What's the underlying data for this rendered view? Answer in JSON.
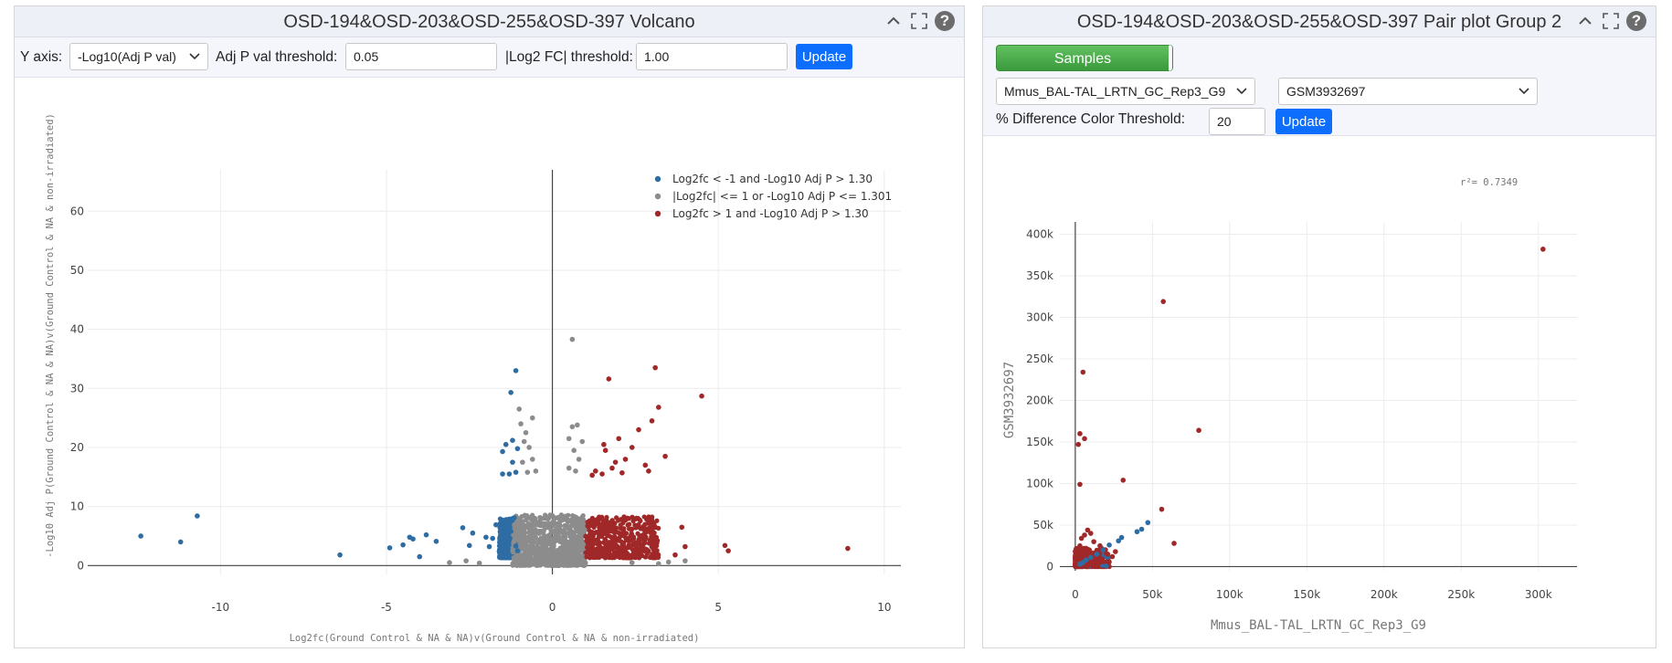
{
  "volcano": {
    "title": "OSD-194&OSD-203&OSD-255&OSD-397 Volcano",
    "controls": {
      "y_axis_label": "Y axis:",
      "y_axis_value": "-Log10(Adj P val)",
      "adj_p_label": "Adj P val threshold:",
      "adj_p_value": "0.05",
      "log2fc_label": "|Log2 FC| threshold:",
      "log2fc_value": "1.00",
      "update_label": "Update"
    }
  },
  "pair": {
    "title": "OSD-194&OSD-203&OSD-255&OSD-397 Pair plot Group 2",
    "controls": {
      "samples_label": "Samples",
      "sample_x_value": "Mmus_BAL-TAL_LRTN_GC_Rep3_G9",
      "sample_y_value": "GSM3932697",
      "threshold_label": "% Difference Color Threshold:",
      "threshold_value": "20",
      "update_label": "Update"
    }
  },
  "colors": {
    "down": "#2e6da4",
    "ns": "#8c8c8c",
    "up": "#a02828",
    "update_button": "#0d6efd",
    "samples_button": "#4caf50"
  },
  "chart_data": [
    {
      "type": "scatter",
      "name": "volcano",
      "xlabel": "Log2fc(Ground Control & NA & NA)v(Ground Control & NA & non-irradiated)",
      "ylabel": "-Log10 Adj P(Ground Control & NA & NA)v(Ground Control & NA & non-irradiated)",
      "xlim": [
        -14,
        10.5
      ],
      "ylim": [
        -1.5,
        67
      ],
      "xticks": [
        -10,
        -5,
        0,
        5,
        10
      ],
      "yticks": [
        0,
        10,
        20,
        30,
        40,
        50,
        60
      ],
      "grid": true,
      "legend_position": "top-right",
      "series": [
        {
          "name": "Log2fc < -1 and -Log10 Adj P > 1.30",
          "color": "#2e6da4",
          "points": [
            [
              -12.4,
              5
            ],
            [
              -11.2,
              4
            ],
            [
              -10.7,
              8.4
            ],
            [
              -6.4,
              1.8
            ],
            [
              -4.9,
              3
            ],
            [
              -4.5,
              3.5
            ],
            [
              -4.3,
              4.8
            ],
            [
              -4.2,
              4.5
            ],
            [
              -4.0,
              1.5
            ],
            [
              -3.8,
              5.2
            ],
            [
              -3.5,
              4.1
            ],
            [
              -2.7,
              6.4
            ],
            [
              -2.5,
              3.4
            ],
            [
              -2.4,
              5.5
            ],
            [
              -2.0,
              4.8
            ],
            [
              -1.9,
              3.2
            ],
            [
              -1.8,
              4.6
            ],
            [
              -1.7,
              6.9
            ],
            [
              -1.5,
              3.9
            ],
            [
              -1.4,
              5.4
            ],
            [
              -1.3,
              4.3
            ],
            [
              -1.2,
              7.7
            ],
            [
              -1.1,
              3.3
            ],
            [
              -1.05,
              2.5
            ],
            [
              -1.35,
              6.4
            ],
            [
              -1.6,
              2.4
            ],
            [
              -1.25,
              5.8
            ],
            [
              -1.15,
              8.1
            ],
            [
              -1.5,
              15.5
            ],
            [
              -1.5,
              19.3
            ],
            [
              -1.4,
              20.5
            ],
            [
              -1.3,
              15.5
            ],
            [
              -1.2,
              17.5
            ],
            [
              -1.1,
              15.8
            ],
            [
              -1.2,
              21.2
            ],
            [
              -1.25,
              29.3
            ],
            [
              -1.1,
              33
            ],
            [
              -1.05,
              19.8
            ]
          ]
        },
        {
          "name": "|Log2fc| <= 1 or -Log10 Adj P <= 1.301",
          "color": "#8c8c8c",
          "points": [
            [
              0.6,
              38.3
            ],
            [
              -0.95,
              24
            ],
            [
              -0.8,
              22.5
            ],
            [
              -0.7,
              20
            ],
            [
              -0.6,
              18
            ],
            [
              -0.5,
              16
            ],
            [
              -0.9,
              17.5
            ],
            [
              -0.6,
              25
            ],
            [
              -0.75,
              15.8
            ],
            [
              -0.85,
              21
            ],
            [
              -1.0,
              26.5
            ],
            [
              0.5,
              21.5
            ],
            [
              0.6,
              23.5
            ],
            [
              0.75,
              23.8
            ],
            [
              0.65,
              19.5
            ],
            [
              0.8,
              18
            ],
            [
              0.7,
              16
            ],
            [
              0.9,
              21
            ],
            [
              0.5,
              16.5
            ],
            [
              -3.1,
              0.5
            ],
            [
              -2.6,
              0.8
            ],
            [
              -2.2,
              0.4
            ],
            [
              3.2,
              0.3
            ],
            [
              4.0,
              0.8
            ],
            [
              3.5,
              0.6
            ],
            [
              2.4,
              0.5
            ]
          ]
        },
        {
          "name": "Log2fc > 1 and -Log10 Adj P > 1.30",
          "color": "#a02828",
          "points": [
            [
              3.1,
              33.5
            ],
            [
              1.7,
              31.6
            ],
            [
              4.5,
              28.7
            ],
            [
              3.2,
              26.8
            ],
            [
              3.0,
              24.5
            ],
            [
              2.6,
              23
            ],
            [
              2.0,
              21.5
            ],
            [
              1.6,
              19.5
            ],
            [
              2.4,
              20
            ],
            [
              2.8,
              17
            ],
            [
              1.3,
              16
            ],
            [
              1.5,
              15.5
            ],
            [
              2.2,
              18
            ],
            [
              1.8,
              16.5
            ],
            [
              3.4,
              18.5
            ],
            [
              2.9,
              16
            ],
            [
              2.1,
              15.7
            ],
            [
              1.2,
              15.3
            ],
            [
              1.9,
              17.5
            ],
            [
              1.55,
              20.5
            ],
            [
              5.2,
              3.4
            ],
            [
              5.3,
              2.5
            ],
            [
              8.9,
              2.9
            ],
            [
              3.9,
              6.5
            ],
            [
              4.0,
              3.2
            ],
            [
              3.7,
              1.8
            ]
          ]
        }
      ],
      "dense_bands": [
        {
          "series": 0,
          "x": [
            -1.6,
            -1.0
          ],
          "y": [
            1.3,
            8
          ]
        },
        {
          "series": 1,
          "x": [
            -1.2,
            1.0
          ],
          "y": [
            0,
            8.6
          ]
        },
        {
          "series": 2,
          "x": [
            1.0,
            3.2
          ],
          "y": [
            1.3,
            8.3
          ]
        }
      ]
    },
    {
      "type": "scatter",
      "name": "pair plot",
      "xlabel": "Mmus_BAL-TAL_LRTN_GC_Rep3_G9",
      "ylabel": "GSM3932697",
      "annotation": "r²= 0.7349",
      "xlim": [
        -10000,
        325000
      ],
      "ylim": [
        -5000,
        406000
      ],
      "xticks": [
        0,
        50000,
        100000,
        150000,
        200000,
        250000,
        300000
      ],
      "xticklabels": [
        "0",
        "50k",
        "100k",
        "150k",
        "200k",
        "250k",
        "300k"
      ],
      "yticks": [
        0,
        50000,
        100000,
        150000,
        200000,
        250000,
        300000,
        350000,
        400000
      ],
      "yticklabels": [
        "0",
        "50k",
        "100k",
        "150k",
        "200k",
        "250k",
        "300k",
        "350k",
        "400k"
      ],
      "grid": true,
      "series": [
        {
          "color": "#a02828",
          "points": [
            [
              303000,
              382000
            ],
            [
              57000,
              319000
            ],
            [
              5000,
              234000
            ],
            [
              3000,
              160000
            ],
            [
              2000,
              147000
            ],
            [
              6000,
              154000
            ],
            [
              80000,
              164000
            ],
            [
              3000,
              99000
            ],
            [
              31000,
              104000
            ],
            [
              56000,
              69000
            ],
            [
              64000,
              28000
            ],
            [
              26000,
              18000
            ],
            [
              21000,
              15000
            ],
            [
              15000,
              19000
            ],
            [
              12000,
              30000
            ],
            [
              10000,
              40000
            ],
            [
              8000,
              44000
            ],
            [
              6000,
              38000
            ],
            [
              4000,
              34000
            ],
            [
              3000,
              25000
            ],
            [
              2000,
              16000
            ],
            [
              1500,
              10000
            ],
            [
              1000,
              5000
            ],
            [
              9000,
              8000
            ],
            [
              13000,
              10000
            ],
            [
              18000,
              6000
            ],
            [
              24000,
              12000
            ],
            [
              16000,
              25000
            ],
            [
              7000,
              22000
            ],
            [
              11000,
              14000
            ],
            [
              5000,
              12000
            ],
            [
              3000,
              6000
            ],
            [
              8000,
              2000
            ]
          ]
        },
        {
          "color": "#2e6da4",
          "points": [
            [
              47000,
              53000
            ],
            [
              43000,
              45000
            ],
            [
              40000,
              42000
            ],
            [
              30000,
              35000
            ],
            [
              28000,
              31000
            ],
            [
              22000,
              26000
            ],
            [
              18000,
              20000
            ],
            [
              14000,
              15000
            ],
            [
              10000,
              11000
            ],
            [
              7000,
              8000
            ],
            [
              5000,
              5000
            ],
            [
              3000,
              3000
            ]
          ]
        }
      ]
    }
  ]
}
